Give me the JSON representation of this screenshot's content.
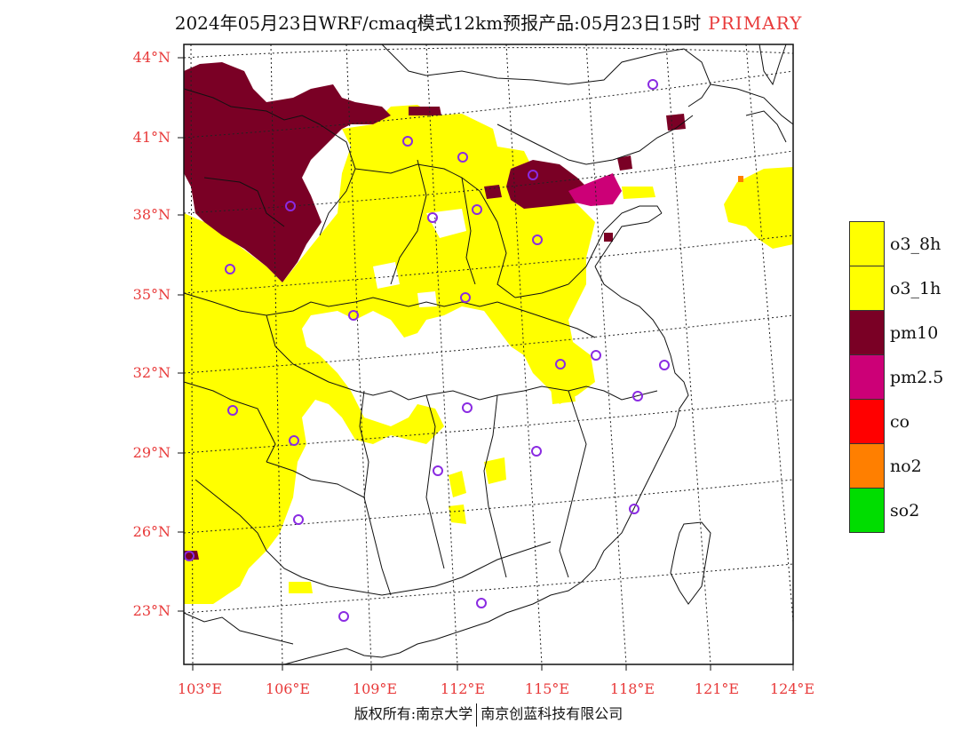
{
  "header": {
    "title": "2024年05月23日WRF/cmaq模式12km预报产品:05月23日15时",
    "tag": "PRIMARY"
  },
  "axes": {
    "lat_labels": [
      "44°N",
      "41°N",
      "38°N",
      "35°N",
      "32°N",
      "29°N",
      "26°N",
      "23°N"
    ],
    "lon_labels": [
      "103°E",
      "106°E",
      "109°E",
      "112°E",
      "115°E",
      "118°E",
      "121°E",
      "124°E"
    ]
  },
  "legend": {
    "items": [
      {
        "label": "o3_8h",
        "color": "#ffff00"
      },
      {
        "label": "o3_1h",
        "color": "#ffff00"
      },
      {
        "label": "pm10",
        "color": "#7a0025"
      },
      {
        "label": "pm2.5",
        "color": "#cc0077"
      },
      {
        "label": "co",
        "color": "#ff0000"
      },
      {
        "label": "no2",
        "color": "#ff7f00"
      },
      {
        "label": "so2",
        "color": "#00dd00"
      }
    ]
  },
  "footer": {
    "left": "版权所有:南京大学",
    "right": "南京创蓝科技有限公司"
  },
  "colors": {
    "label_red": "#e83a3a",
    "station_purple": "#8a2be2"
  }
}
